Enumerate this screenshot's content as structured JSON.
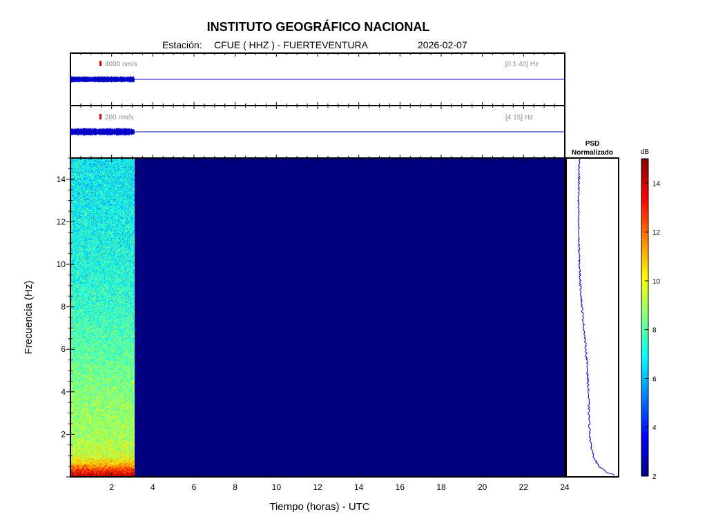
{
  "header": {
    "title": "INSTITUTO GEOGRÁFICO NACIONAL",
    "station_label": "Estación:",
    "station": "CFUE ( HHZ ) - FUERTEVENTURA",
    "date": "2026-02-07"
  },
  "colors": {
    "trace": "#0000c8",
    "scale_marker": "#e00000",
    "spectrogram_background": "#000080",
    "axes": "#000000"
  },
  "chart_data": [
    {
      "type": "line",
      "name": "broadband-trace",
      "scale_label": "4000 nm/s",
      "filter_label": "[0.1 40] Hz",
      "data_end_hour": 3.1,
      "xlim": [
        0,
        24
      ]
    },
    {
      "type": "line",
      "name": "filtered-trace",
      "scale_label": "200 nm/s",
      "filter_label": "[4 15] Hz",
      "data_end_hour": 3.1,
      "xlim": [
        0,
        24
      ]
    },
    {
      "type": "heatmap",
      "name": "spectrogram",
      "xlabel": "Tiempo (horas) - UTC",
      "ylabel": "Frecuencia  (Hz)",
      "xlim": [
        0,
        24
      ],
      "ylim": [
        0,
        15
      ],
      "x_ticks": [
        "2",
        "4",
        "6",
        "8",
        "10",
        "12",
        "14",
        "16",
        "18",
        "20",
        "22",
        "24"
      ],
      "y_ticks": [
        "2",
        "4",
        "6",
        "8",
        "10",
        "12",
        "14"
      ],
      "data_end_hour": 3.1,
      "colormap": "jet",
      "power_db_profile": {
        "frequency_hz": [
          0.1,
          0.3,
          0.6,
          1,
          2,
          3,
          4,
          5,
          6,
          8,
          10,
          12,
          14,
          15
        ],
        "db": [
          14,
          13,
          11,
          9.5,
          9,
          8.8,
          8.6,
          8.3,
          8,
          7.5,
          7.2,
          7,
          6.8,
          6.8
        ]
      },
      "no_data_db": 2
    },
    {
      "type": "line",
      "name": "psd",
      "title_line1": "PSD",
      "title_line2": "Normalizado",
      "ylim": [
        0,
        15
      ],
      "frequency_hz": [
        0.05,
        0.2,
        0.5,
        1,
        1.5,
        2,
        3,
        4,
        5,
        6,
        7,
        8,
        9,
        10,
        11,
        12,
        13,
        14,
        15
      ],
      "normalized_psd": [
        1.0,
        0.8,
        0.62,
        0.52,
        0.47,
        0.45,
        0.43,
        0.42,
        0.4,
        0.37,
        0.33,
        0.29,
        0.26,
        0.24,
        0.23,
        0.22,
        0.22,
        0.23,
        0.24
      ]
    },
    {
      "type": "colorbar",
      "name": "db-colorbar",
      "label": "dB",
      "range": [
        2,
        15
      ],
      "ticks": [
        "2",
        "4",
        "6",
        "8",
        "10",
        "12",
        "14"
      ]
    }
  ]
}
